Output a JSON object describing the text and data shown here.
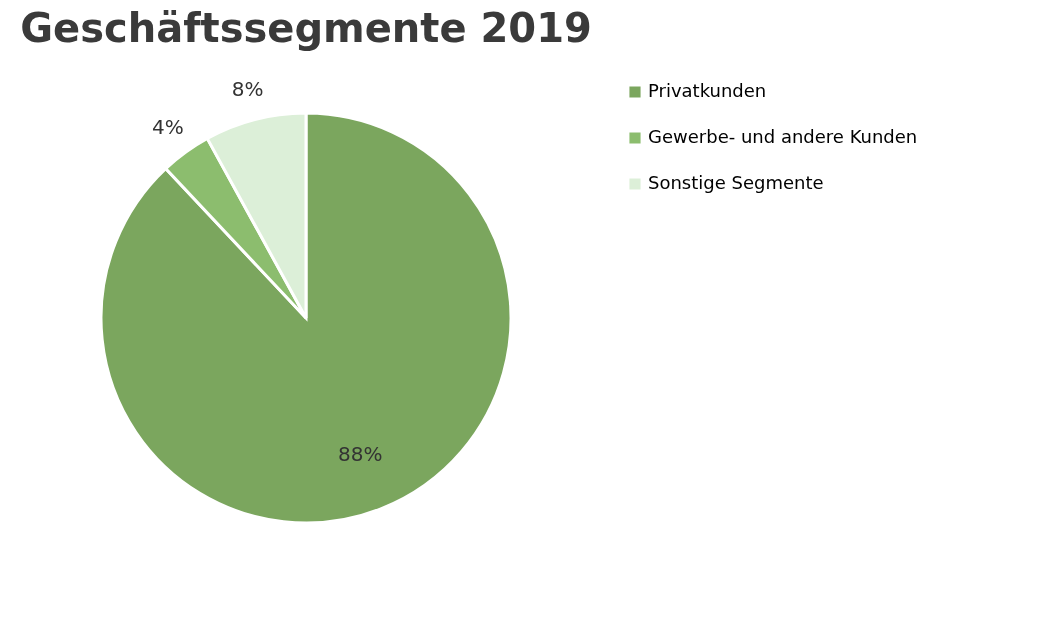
{
  "chart_data": {
    "type": "pie",
    "title": "Geschäftssegmente 2019",
    "categories": [
      "Privatkunden",
      "Gewerbe- und andere Kunden",
      "Sonstige Segmente"
    ],
    "values": [
      88,
      4,
      8
    ],
    "colors": [
      "#7ba65e",
      "#8cbd6e",
      "#dcefd8"
    ],
    "value_labels": [
      "88%",
      "4%",
      "8%"
    ],
    "legend": "right"
  }
}
